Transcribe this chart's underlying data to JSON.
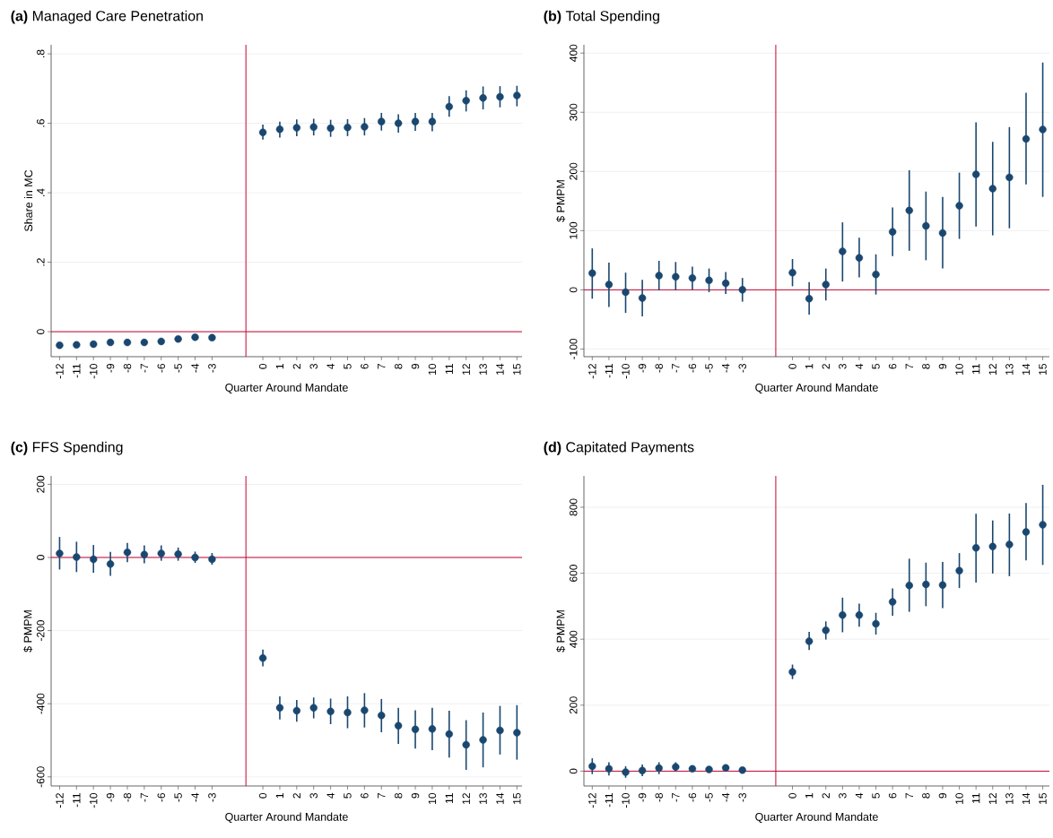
{
  "chart_data": [
    {
      "type": "scatter",
      "title": "**(a)** Managed Care Penetration",
      "xlabel": "Quarter Around Mandate",
      "ylabel": "Share in MC",
      "color": "#1a476f",
      "marker": "circle",
      "grid": "y",
      "x": [
        -12,
        -11,
        -10,
        -9,
        -8,
        -7,
        -6,
        -5,
        -4,
        -3,
        0,
        1,
        2,
        3,
        4,
        5,
        6,
        7,
        8,
        9,
        10,
        11,
        12,
        13,
        14,
        15
      ],
      "values": [
        -0.039,
        -0.038,
        -0.036,
        -0.031,
        -0.031,
        -0.031,
        -0.028,
        -0.021,
        -0.016,
        -0.017,
        0.574,
        0.583,
        0.587,
        0.589,
        0.586,
        0.588,
        0.59,
        0.605,
        0.6,
        0.605,
        0.605,
        0.648,
        0.665,
        0.673,
        0.676,
        0.68
      ],
      "errors": [
        null,
        null,
        null,
        null,
        null,
        null,
        null,
        null,
        null,
        null,
        [
          0.553,
          0.596
        ],
        [
          0.559,
          0.605
        ],
        [
          0.563,
          0.611
        ],
        [
          0.565,
          0.613
        ],
        [
          0.561,
          0.61
        ],
        [
          0.563,
          0.612
        ],
        [
          0.565,
          0.615
        ],
        [
          0.579,
          0.63
        ],
        [
          0.573,
          0.626
        ],
        [
          0.578,
          0.63
        ],
        [
          0.577,
          0.63
        ],
        [
          0.619,
          0.678
        ],
        [
          0.634,
          0.695
        ],
        [
          0.64,
          0.706
        ],
        [
          0.646,
          0.707
        ],
        [
          0.649,
          0.708
        ]
      ],
      "xlim": [
        -12.5,
        15.3
      ],
      "ylim": [
        -0.072,
        0.826
      ],
      "xticks": [
        -12,
        -11,
        -10,
        -9,
        -8,
        -7,
        -6,
        -5,
        -4,
        -3,
        0,
        1,
        2,
        3,
        4,
        5,
        6,
        7,
        8,
        9,
        10,
        11,
        12,
        13,
        14,
        15
      ],
      "yticks": [
        0,
        {
          "value": 0.2,
          "label": ".2"
        },
        {
          "value": 0.4,
          "label": ".4"
        },
        {
          "value": 0.6,
          "label": ".6"
        },
        {
          "value": 0.8,
          "label": ".8"
        }
      ],
      "ref_lines": [
        {
          "axis": "x",
          "value": -1,
          "color": "#c10534"
        },
        {
          "axis": "y",
          "value": 0,
          "color": "#c10534"
        }
      ]
    },
    {
      "type": "scatter",
      "title": "**(b)** Total Spending",
      "xlabel": "Quarter Around Mandate",
      "ylabel": "$ PMPM",
      "color": "#1a476f",
      "marker": "circle",
      "grid": "y",
      "x": [
        -12,
        -11,
        -10,
        -9,
        -8,
        -7,
        -6,
        -5,
        -4,
        -3,
        0,
        1,
        2,
        3,
        4,
        5,
        6,
        7,
        8,
        9,
        10,
        11,
        12,
        13,
        14,
        15
      ],
      "values": [
        28,
        9,
        -4,
        -14,
        24,
        22,
        20,
        16,
        11,
        0,
        29,
        -15,
        9,
        65,
        54,
        26,
        98,
        134,
        108,
        96,
        142,
        195,
        171,
        190,
        255,
        271
      ],
      "errors": [
        [
          -15,
          70
        ],
        [
          -29,
          46
        ],
        [
          -39,
          29
        ],
        [
          -45,
          17
        ],
        [
          -1,
          49
        ],
        [
          -1,
          47
        ],
        [
          0,
          39
        ],
        [
          -4,
          36
        ],
        [
          -7,
          30
        ],
        [
          -20,
          20
        ],
        [
          6,
          52
        ],
        [
          -42,
          13
        ],
        [
          -18,
          36
        ],
        [
          14,
          114
        ],
        [
          21,
          88
        ],
        [
          -8,
          60
        ],
        [
          57,
          139
        ],
        [
          66,
          202
        ],
        [
          50,
          166
        ],
        [
          36,
          157
        ],
        [
          86,
          198
        ],
        [
          107,
          283
        ],
        [
          92,
          250
        ],
        [
          104,
          275
        ],
        [
          178,
          333
        ],
        [
          157,
          384
        ]
      ],
      "xlim": [
        -12.5,
        15.4
      ],
      "ylim": [
        -113,
        414
      ],
      "xticks": [
        -12,
        -11,
        -10,
        -9,
        -8,
        -7,
        -6,
        -5,
        -4,
        -3,
        0,
        1,
        2,
        3,
        4,
        5,
        6,
        7,
        8,
        9,
        10,
        11,
        12,
        13,
        14,
        15
      ],
      "yticks": [
        -100,
        0,
        100,
        200,
        300,
        400
      ],
      "ref_lines": [
        {
          "axis": "x",
          "value": -1,
          "color": "#c10534"
        },
        {
          "axis": "y",
          "value": 0,
          "color": "#c10534"
        }
      ]
    },
    {
      "type": "scatter",
      "title": "**(c)** FFS Spending",
      "xlabel": "Quarter Around Mandate",
      "ylabel": "$ PMPM",
      "color": "#1a476f",
      "marker": "circle",
      "grid": "y",
      "x": [
        -12,
        -11,
        -10,
        -9,
        -8,
        -7,
        -6,
        -5,
        -4,
        -3,
        0,
        1,
        2,
        3,
        4,
        5,
        6,
        7,
        8,
        9,
        10,
        11,
        12,
        13,
        14,
        15
      ],
      "values": [
        11,
        1,
        -5,
        -18,
        14,
        8,
        11,
        9,
        0,
        -5,
        -275,
        -411,
        -419,
        -411,
        -421,
        -424,
        -418,
        -432,
        -460,
        -470,
        -469,
        -483,
        -512,
        -499,
        -473,
        -479
      ],
      "errors": [
        [
          -33,
          56
        ],
        [
          -40,
          43
        ],
        [
          -42,
          34
        ],
        [
          -50,
          15
        ],
        [
          -13,
          40
        ],
        [
          -16,
          33
        ],
        [
          -9,
          33
        ],
        [
          -9,
          27
        ],
        [
          -15,
          16
        ],
        [
          -20,
          12
        ],
        [
          -298,
          -252
        ],
        [
          -443,
          -380
        ],
        [
          -449,
          -390
        ],
        [
          -440,
          -383
        ],
        [
          -456,
          -386
        ],
        [
          -467,
          -380
        ],
        [
          -465,
          -371
        ],
        [
          -478,
          -387
        ],
        [
          -510,
          -411
        ],
        [
          -523,
          -418
        ],
        [
          -527,
          -411
        ],
        [
          -547,
          -419
        ],
        [
          -581,
          -445
        ],
        [
          -574,
          -424
        ],
        [
          -539,
          -406
        ],
        [
          -553,
          -404
        ]
      ],
      "xlim": [
        -12.5,
        15.3
      ],
      "ylim": [
        -625,
        223
      ],
      "xticks": [
        -12,
        -11,
        -10,
        -9,
        -8,
        -7,
        -6,
        -5,
        -4,
        -3,
        0,
        1,
        2,
        3,
        4,
        5,
        6,
        7,
        8,
        9,
        10,
        11,
        12,
        13,
        14,
        15
      ],
      "yticks": [
        -600,
        -400,
        -200,
        0,
        200
      ],
      "ref_lines": [
        {
          "axis": "x",
          "value": -1,
          "color": "#c10534"
        },
        {
          "axis": "y",
          "value": 0,
          "color": "#c10534"
        }
      ]
    },
    {
      "type": "scatter",
      "title": "**(d)** Capitated Payments",
      "xlabel": "Quarter Around Mandate",
      "ylabel": "$ PMPM",
      "color": "#1a476f",
      "marker": "circle",
      "grid": "y",
      "x": [
        -12,
        -11,
        -10,
        -9,
        -8,
        -7,
        -6,
        -5,
        -4,
        -3,
        0,
        1,
        2,
        3,
        4,
        5,
        6,
        7,
        8,
        9,
        10,
        11,
        12,
        13,
        14,
        15
      ],
      "values": [
        15,
        7,
        -3,
        2,
        9,
        13,
        7,
        5,
        10,
        3,
        301,
        394,
        427,
        473,
        473,
        447,
        513,
        563,
        566,
        564,
        608,
        677,
        681,
        687,
        725,
        747
      ],
      "errors": [
        [
          -9,
          39
        ],
        [
          -13,
          27
        ],
        [
          -20,
          15
        ],
        [
          -15,
          20
        ],
        [
          -9,
          27
        ],
        [
          -1,
          27
        ],
        null,
        null,
        null,
        null,
        [
          279,
          323
        ],
        [
          367,
          422
        ],
        [
          399,
          454
        ],
        [
          421,
          526
        ],
        [
          438,
          508
        ],
        [
          414,
          480
        ],
        [
          471,
          554
        ],
        [
          483,
          644
        ],
        [
          500,
          632
        ],
        [
          494,
          634
        ],
        [
          555,
          661
        ],
        [
          572,
          780
        ],
        [
          599,
          760
        ],
        [
          591,
          781
        ],
        [
          639,
          813
        ],
        [
          625,
          868
        ]
      ],
      "xlim": [
        -12.5,
        15.4
      ],
      "ylim": [
        -45,
        895
      ],
      "xticks": [
        -12,
        -11,
        -10,
        -9,
        -8,
        -7,
        -6,
        -5,
        -4,
        -3,
        0,
        1,
        2,
        3,
        4,
        5,
        6,
        7,
        8,
        9,
        10,
        11,
        12,
        13,
        14,
        15
      ],
      "yticks": [
        0,
        200,
        400,
        600,
        800
      ],
      "ref_lines": [
        {
          "axis": "x",
          "value": -1,
          "color": "#c10534"
        },
        {
          "axis": "y",
          "value": 0,
          "color": "#c10534"
        }
      ]
    }
  ]
}
